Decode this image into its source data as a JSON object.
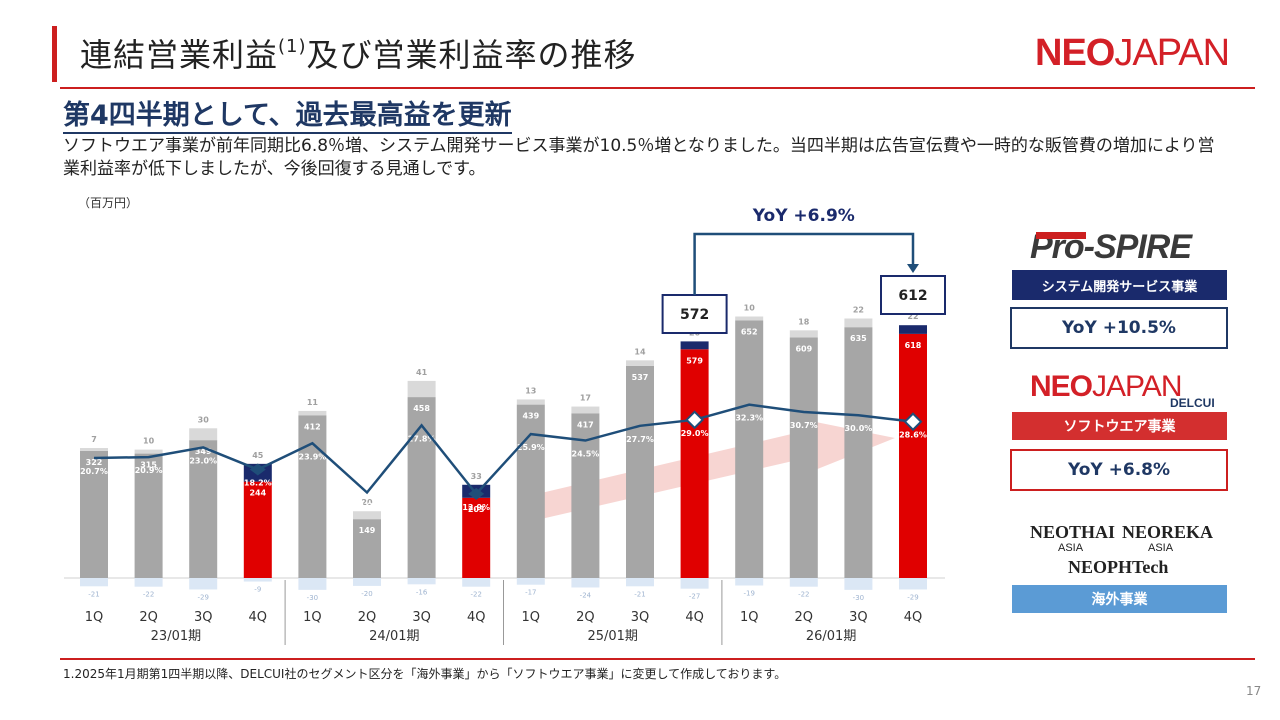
{
  "header": {
    "title": "連結営業利益",
    "title_sup": "(1)",
    "title_rest": "及び営業利益率の推移",
    "logo_bold": "NEO",
    "logo_light": "JAPAN",
    "headline": "第4四半期として、過去最高益を更新",
    "description": "ソフトウエア事業が前年同期比6.8％増、システム開発サービス事業が10.5％増となりました。当四半期は広告宣伝費や一時的な販管費の増加により営業利益率が低下しましたが、今後回復する見通しです。",
    "unit": "（百万円）"
  },
  "chart_data": {
    "type": "bar",
    "stacked": true,
    "categories": [
      "1Q",
      "2Q",
      "3Q",
      "4Q",
      "1Q",
      "2Q",
      "3Q",
      "4Q",
      "1Q",
      "2Q",
      "3Q",
      "4Q",
      "1Q",
      "2Q",
      "3Q",
      "4Q"
    ],
    "fiscal_years": [
      "23/01期",
      "24/01期",
      "25/01期",
      "26/01期"
    ],
    "highlight_quarters": [
      3,
      7,
      11,
      15
    ],
    "series": [
      {
        "name": "ソフトウエア事業",
        "values": [
          322,
          315,
          349,
          244,
          412,
          149,
          458,
          203,
          439,
          417,
          537,
          579,
          652,
          609,
          635,
          618
        ]
      },
      {
        "name": "システム開発サービス事業",
        "values": [
          7,
          10,
          30,
          45,
          11,
          20,
          41,
          33,
          13,
          17,
          14,
          20,
          10,
          18,
          22,
          22
        ]
      },
      {
        "name": "海外事業",
        "values": [
          -21,
          -22,
          -29,
          -9,
          -30,
          -20,
          -16,
          -22,
          -17,
          -24,
          -21,
          -27,
          -19,
          -22,
          -30,
          -29
        ]
      }
    ],
    "margin_pct": [
      20.7,
      20.9,
      23.0,
      18.2,
      23.9,
      13.2,
      27.8,
      12.9,
      25.9,
      24.5,
      27.7,
      29.0,
      32.3,
      30.7,
      30.0,
      28.6
    ],
    "margin_labels": [
      "20.7%",
      "20.9%",
      "23.0%",
      "18.2%",
      "23.9%",
      "13.2%",
      "27.8%",
      "12.9%",
      "25.9%",
      "24.5%",
      "27.7%",
      "29.0%",
      "32.3%",
      "30.7%",
      "30.0%",
      "28.6%"
    ],
    "callouts": [
      {
        "index": 11,
        "total": 572
      },
      {
        "index": 15,
        "total": 612
      }
    ],
    "yoy_label": "YoY +6.9%"
  },
  "legend": {
    "prospire_logo": "Pro-SPIRE",
    "system_label": "システム開発サービス事業",
    "system_yoy": "YoY +10.5%",
    "neojapan_bold": "NEO",
    "neojapan_light": "JAPAN",
    "delcui": "DELCUI",
    "software_label": "ソフトウエア事業",
    "software_yoy": "YoY +6.8%",
    "thai": "NEOTHAI",
    "thai_sub": "ASIA",
    "reka": "NEOREKA",
    "reka_sub": "ASIA",
    "phtech": "NEOPHTech",
    "overseas_label": "海外事業"
  },
  "colors": {
    "software_gray": "#a6a6a6",
    "software_red": "#e00000",
    "system_light": "#d9d9d9",
    "system_navy": "#1a2a6c",
    "overseas": "#dbe7f5",
    "line": "#1f4e79",
    "accent_red": "#cc1f1f"
  },
  "footer": {
    "footnote": "1.2025年1月期第1四半期以降、DELCUI社のセグメント区分を「海外事業」から「ソフトウエア事業」に変更して作成しております。",
    "page": "17"
  }
}
